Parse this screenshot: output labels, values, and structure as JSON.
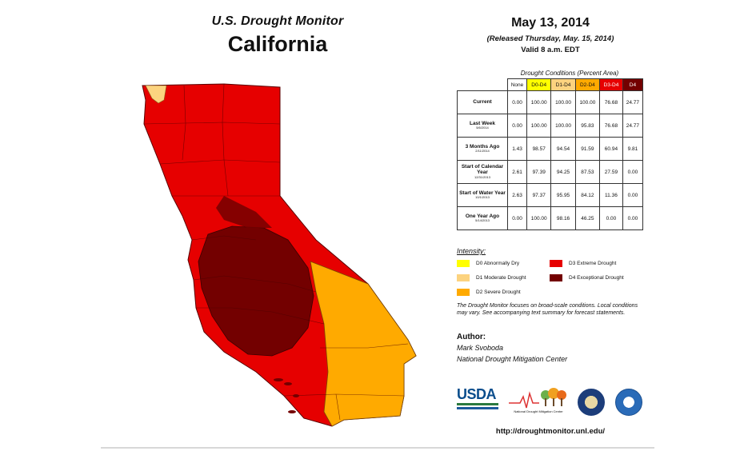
{
  "header": {
    "monitor_title": "U.S. Drought Monitor",
    "region": "California",
    "date": "May 13, 2014",
    "released": "(Released Thursday, May. 15, 2014)",
    "valid": "Valid 8 a.m. EDT"
  },
  "table": {
    "caption": "Drought Conditions (Percent Area)",
    "columns": [
      "None",
      "D0-D4",
      "D1-D4",
      "D2-D4",
      "D3-D4",
      "D4"
    ],
    "column_colors": [
      "#ffffff",
      "#ffff00",
      "#fcd37f",
      "#ffaa00",
      "#e60000",
      "#730000"
    ],
    "rows": [
      {
        "label": "Current",
        "sub": "",
        "values": [
          "0.00",
          "100.00",
          "100.00",
          "100.00",
          "76.68",
          "24.77"
        ]
      },
      {
        "label": "Last Week",
        "sub": "5/6/2014",
        "values": [
          "0.00",
          "100.00",
          "100.00",
          "95.83",
          "76.68",
          "24.77"
        ]
      },
      {
        "label": "3 Months Ago",
        "sub": "2/11/2014",
        "values": [
          "1.43",
          "98.57",
          "94.54",
          "91.59",
          "60.94",
          "9.81"
        ]
      },
      {
        "label": "Start of Calendar Year",
        "sub": "12/31/2013",
        "values": [
          "2.61",
          "97.39",
          "94.25",
          "87.53",
          "27.59",
          "0.00"
        ]
      },
      {
        "label": "Start of Water Year",
        "sub": "10/1/2013",
        "values": [
          "2.63",
          "97.37",
          "95.95",
          "84.12",
          "11.36",
          "0.00"
        ]
      },
      {
        "label": "One Year Ago",
        "sub": "5/14/2013",
        "values": [
          "0.00",
          "100.00",
          "98.16",
          "46.25",
          "0.00",
          "0.00"
        ]
      }
    ]
  },
  "legend": {
    "title": "Intensity:",
    "items": [
      {
        "label": "D0 Abnormally Dry",
        "color": "#ffff00"
      },
      {
        "label": "D1 Moderate Drought",
        "color": "#fcd37f"
      },
      {
        "label": "D2 Severe Drought",
        "color": "#ffaa00"
      },
      {
        "label": "D3 Extreme Drought",
        "color": "#e60000"
      },
      {
        "label": "D4 Exceptional Drought",
        "color": "#730000"
      }
    ]
  },
  "note": "The Drought Monitor focuses on broad-scale conditions. Local conditions may vary. See accompanying text summary for forecast statements.",
  "author": {
    "label": "Author:",
    "name": "Mark Svoboda",
    "org": "National Drought Mitigation Center"
  },
  "logos": {
    "usda": "USDA",
    "ndmc": "National Drought Mitigation Center"
  },
  "url": "http://droughtmonitor.unl.edu/"
}
